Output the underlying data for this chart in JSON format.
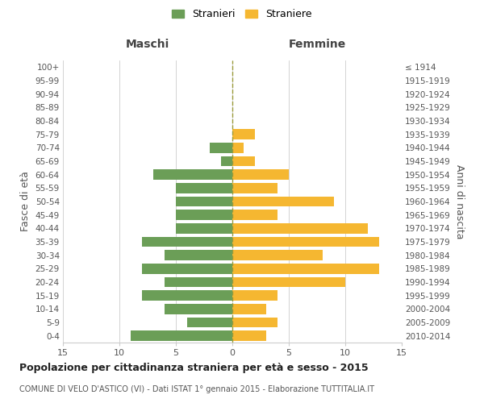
{
  "age_groups": [
    "0-4",
    "5-9",
    "10-14",
    "15-19",
    "20-24",
    "25-29",
    "30-34",
    "35-39",
    "40-44",
    "45-49",
    "50-54",
    "55-59",
    "60-64",
    "65-69",
    "70-74",
    "75-79",
    "80-84",
    "85-89",
    "90-94",
    "95-99",
    "100+"
  ],
  "birth_years": [
    "2010-2014",
    "2005-2009",
    "2000-2004",
    "1995-1999",
    "1990-1994",
    "1985-1989",
    "1980-1984",
    "1975-1979",
    "1970-1974",
    "1965-1969",
    "1960-1964",
    "1955-1959",
    "1950-1954",
    "1945-1949",
    "1940-1944",
    "1935-1939",
    "1930-1934",
    "1925-1929",
    "1920-1924",
    "1915-1919",
    "≤ 1914"
  ],
  "maschi": [
    9,
    4,
    6,
    8,
    6,
    8,
    6,
    8,
    5,
    5,
    5,
    5,
    7,
    1,
    2,
    0,
    0,
    0,
    0,
    0,
    0
  ],
  "femmine": [
    3,
    4,
    3,
    4,
    10,
    13,
    8,
    13,
    12,
    4,
    9,
    4,
    5,
    2,
    1,
    2,
    0,
    0,
    0,
    0,
    0
  ],
  "maschi_color": "#6b9e57",
  "femmine_color": "#f5b731",
  "background_color": "#ffffff",
  "grid_color": "#cccccc",
  "title": "Popolazione per cittadinanza straniera per età e sesso - 2015",
  "subtitle": "COMUNE DI VELO D'ASTICO (VI) - Dati ISTAT 1° gennaio 2015 - Elaborazione TUTTITALIA.IT",
  "left_label": "Maschi",
  "right_label": "Femmine",
  "ylabel": "Fasce di età",
  "right_ylabel": "Anni di nascita",
  "legend_maschi": "Stranieri",
  "legend_femmine": "Straniere",
  "xlim": 15
}
